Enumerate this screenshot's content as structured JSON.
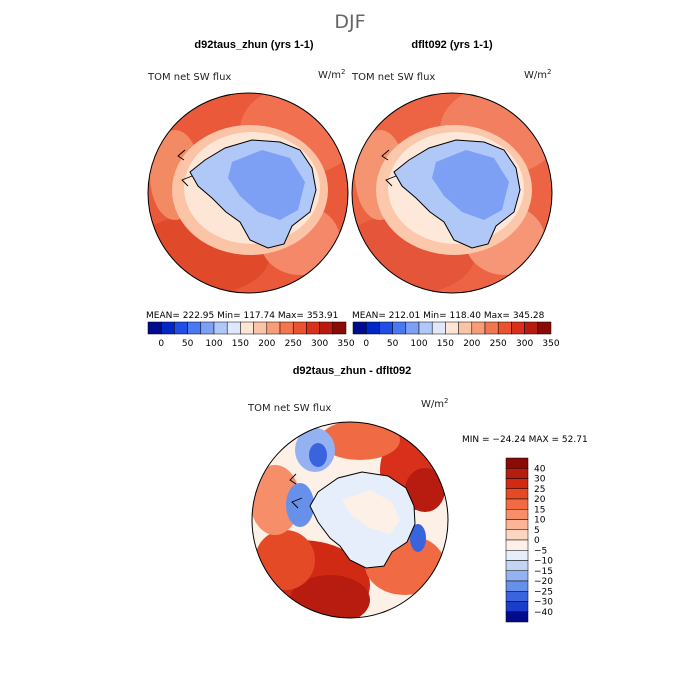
{
  "figure": {
    "season_title": "DJF",
    "top_left": {
      "title": "d92taus_zhun (yrs 1-1)",
      "variable": "TOM net SW flux",
      "units_base": "W/m",
      "units_exp": "2",
      "stats": "MEAN= 222.95   Min= 117.74   Max= 353.91"
    },
    "top_right": {
      "title": "dflt092 (yrs 1-1)",
      "variable": "TOM net SW flux",
      "units_base": "W/m",
      "units_exp": "2",
      "stats": "MEAN= 212.01   Min= 118.40   Max= 345.28"
    },
    "bottom": {
      "title": "d92taus_zhun - dflt092",
      "variable": "TOM net SW flux",
      "units_base": "W/m",
      "units_exp": "2",
      "stats": "MIN = −24.24  MAX =  52.71"
    }
  },
  "chart_data": [
    {
      "type": "heatmap",
      "projection": "polar stereographic (south pole)",
      "title": "d92taus_zhun (yrs 1-1)",
      "variable": "TOM net SW flux",
      "units": "W/m2",
      "mean": 222.95,
      "min": 117.74,
      "max": 353.91,
      "colorbar_ticks": [
        "0",
        "50",
        "100",
        "150",
        "200",
        "250",
        "300",
        "350"
      ],
      "colorbar_colors": [
        "#000a8c",
        "#0026c8",
        "#1f4ee6",
        "#4a78f0",
        "#7ea0f4",
        "#b0c8f8",
        "#dfe8fb",
        "#fde6d6",
        "#fbc4a6",
        "#f89c78",
        "#f4764e",
        "#ea5230",
        "#d8301a",
        "#b81c10",
        "#8a0a06"
      ]
    },
    {
      "type": "heatmap",
      "projection": "polar stereographic (south pole)",
      "title": "dflt092 (yrs 1-1)",
      "variable": "TOM net SW flux",
      "units": "W/m2",
      "mean": 212.01,
      "min": 118.4,
      "max": 345.28,
      "colorbar_ticks": [
        "0",
        "50",
        "100",
        "150",
        "200",
        "250",
        "300",
        "350"
      ],
      "colorbar_colors": [
        "#000a8c",
        "#0026c8",
        "#1f4ee6",
        "#4a78f0",
        "#7ea0f4",
        "#b0c8f8",
        "#dfe8fb",
        "#fde6d6",
        "#fbc4a6",
        "#f89c78",
        "#f4764e",
        "#ea5230",
        "#d8301a",
        "#b81c10",
        "#8a0a06"
      ]
    },
    {
      "type": "heatmap",
      "projection": "polar stereographic (south pole)",
      "title": "d92taus_zhun - dflt092",
      "variable": "TOM net SW flux",
      "units": "W/m2",
      "min": -24.24,
      "max": 52.71,
      "colorbar_ticks": [
        "40",
        "30",
        "25",
        "20",
        "15",
        "10",
        "5",
        "0",
        "−5",
        "−10",
        "−15",
        "−20",
        "−25",
        "−30",
        "−40"
      ],
      "colorbar_colors": [
        "#8a0a06",
        "#b81c10",
        "#d02a14",
        "#e44a26",
        "#f06a44",
        "#f78e6a",
        "#fbb496",
        "#fdd6c2",
        "#fdf0e6",
        "#e6eefb",
        "#c2d4f6",
        "#94b2f2",
        "#6690ea",
        "#3a64de",
        "#1a3cc8",
        "#000a8c"
      ]
    }
  ]
}
